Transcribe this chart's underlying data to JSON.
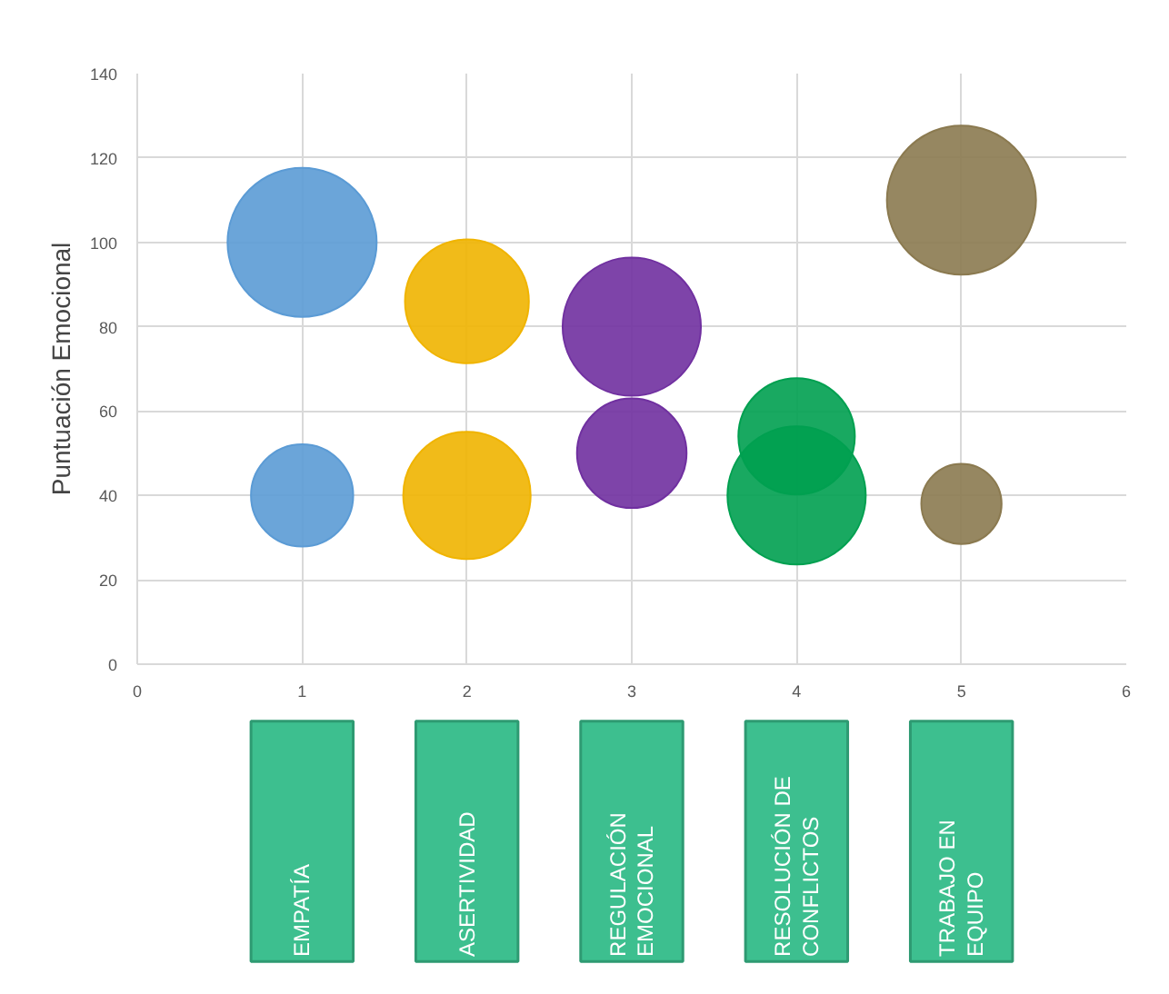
{
  "chart_data": {
    "type": "bubble",
    "ylabel": "Puntuación Emocional",
    "xlim": [
      0,
      6
    ],
    "xticks": [
      0,
      1,
      2,
      3,
      4,
      5,
      6
    ],
    "ylim": [
      0,
      140
    ],
    "yticks": [
      0,
      20,
      40,
      60,
      80,
      100,
      120,
      140
    ],
    "grid": true,
    "series": [
      {
        "x": [
          1,
          1,
          2,
          2,
          3,
          3,
          4,
          4,
          5,
          5
        ],
        "values": [
          100,
          40,
          86,
          40,
          80,
          50,
          40,
          54,
          110,
          38
        ],
        "sizes": [
          1,
          0.47,
          0.69,
          0.73,
          0.86,
          0.54,
          0.86,
          0.61,
          1,
          0.29
        ],
        "colors": [
          "#5b9bd5",
          "#5b9bd5",
          "#f0b400",
          "#f0b400",
          "#7030a0",
          "#7030a0",
          "#00a050",
          "#00a050",
          "#8b7a50",
          "#8b7a50"
        ]
      }
    ],
    "annotations": [
      "EMPATÍA",
      "ASERTIVIDAD",
      "REGULACIÓN\nEMOCIONAL",
      "RESOLUCIÓN DE\nCONFLICTOS",
      "TRABAJO EN\nEQUIPO"
    ]
  }
}
